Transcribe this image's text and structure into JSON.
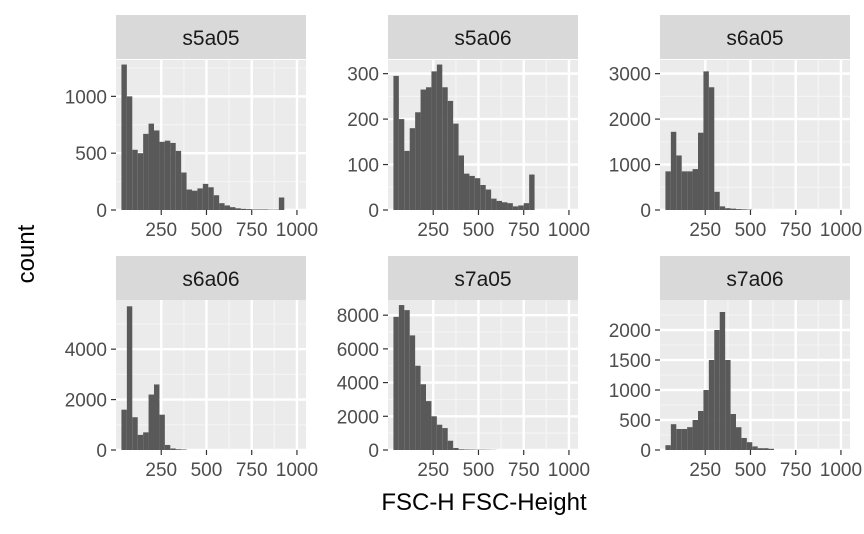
{
  "figure": {
    "xlabel": "FSC-H FSC-Height",
    "ylabel": "count"
  },
  "chart_data": [
    {
      "type": "bar",
      "title": "s5a05",
      "xlim": [
        0,
        1050
      ],
      "ylim": [
        0,
        1320
      ],
      "x_ticks": [
        250,
        500,
        750,
        1000
      ],
      "x_tick_labels": [
        "250",
        "500",
        "750",
        "1000"
      ],
      "y_ticks": [
        0,
        500,
        1000
      ],
      "y_tick_labels": [
        "0",
        "500",
        "1000"
      ],
      "bin_width": 30,
      "bin_start": 30,
      "values": [
        1280,
        1000,
        530,
        500,
        670,
        760,
        700,
        600,
        610,
        590,
        520,
        330,
        180,
        170,
        190,
        230,
        200,
        130,
        60,
        40,
        25,
        15,
        10,
        8,
        5,
        5,
        5,
        3,
        3,
        110
      ]
    },
    {
      "type": "bar",
      "title": "s5a06",
      "xlim": [
        0,
        1050
      ],
      "ylim": [
        0,
        330
      ],
      "x_ticks": [
        250,
        500,
        750,
        1000
      ],
      "x_tick_labels": [
        "250",
        "500",
        "750",
        "1000"
      ],
      "y_ticks": [
        0,
        100,
        200,
        300
      ],
      "y_tick_labels": [
        "0",
        "100",
        "200",
        "300"
      ],
      "bin_width": 30,
      "bin_start": 30,
      "values": [
        295,
        200,
        130,
        180,
        215,
        265,
        270,
        305,
        320,
        270,
        240,
        190,
        120,
        80,
        75,
        70,
        55,
        45,
        25,
        20,
        17,
        15,
        8,
        10,
        15,
        78
      ]
    },
    {
      "type": "bar",
      "title": "s6a05",
      "xlim": [
        0,
        1050
      ],
      "ylim": [
        0,
        3300
      ],
      "x_ticks": [
        250,
        500,
        750,
        1000
      ],
      "x_tick_labels": [
        "250",
        "500",
        "750",
        "1000"
      ],
      "y_ticks": [
        0,
        1000,
        2000,
        3000
      ],
      "y_tick_labels": [
        "0",
        "1000",
        "2000",
        "3000"
      ],
      "bin_width": 30,
      "bin_start": 30,
      "values": [
        850,
        1720,
        1200,
        850,
        850,
        900,
        1700,
        3050,
        2700,
        400,
        80,
        40,
        30,
        20,
        15,
        10
      ]
    },
    {
      "type": "bar",
      "title": "s6a06",
      "xlim": [
        0,
        1050
      ],
      "ylim": [
        0,
        5950
      ],
      "x_ticks": [
        250,
        500,
        750,
        1000
      ],
      "x_tick_labels": [
        "250",
        "500",
        "750",
        "1000"
      ],
      "y_ticks": [
        0,
        2000,
        4000
      ],
      "y_tick_labels": [
        "0",
        "2000",
        "4000"
      ],
      "bin_width": 30,
      "bin_start": 30,
      "values": [
        1600,
        5700,
        1300,
        600,
        700,
        2200,
        2600,
        1400,
        200,
        60,
        30,
        20
      ]
    },
    {
      "type": "bar",
      "title": "s7a05",
      "xlim": [
        0,
        1050
      ],
      "ylim": [
        0,
        8900
      ],
      "x_ticks": [
        250,
        500,
        750,
        1000
      ],
      "x_tick_labels": [
        "250",
        "500",
        "750",
        "1000"
      ],
      "y_ticks": [
        0,
        2000,
        4000,
        6000,
        8000
      ],
      "y_tick_labels": [
        "0",
        "2000",
        "4000",
        "6000",
        "8000"
      ],
      "bin_width": 30,
      "bin_start": 30,
      "values": [
        7900,
        8600,
        8300,
        6800,
        5000,
        3900,
        2900,
        2000,
        1500,
        1300,
        550,
        120,
        40,
        30,
        25,
        20,
        20,
        15,
        10
      ]
    },
    {
      "type": "bar",
      "title": "s7a06",
      "xlim": [
        0,
        1050
      ],
      "ylim": [
        0,
        2500
      ],
      "x_ticks": [
        250,
        500,
        750,
        1000
      ],
      "x_tick_labels": [
        "250",
        "500",
        "750",
        "1000"
      ],
      "y_ticks": [
        0,
        500,
        1000,
        1500,
        2000
      ],
      "y_tick_labels": [
        "0",
        "500",
        "1000",
        "1500",
        "2000"
      ],
      "bin_width": 30,
      "bin_start": 30,
      "values": [
        80,
        430,
        350,
        350,
        380,
        500,
        650,
        1000,
        1500,
        2000,
        2300,
        1500,
        600,
        380,
        200,
        130,
        60,
        30,
        30,
        20
      ]
    }
  ]
}
